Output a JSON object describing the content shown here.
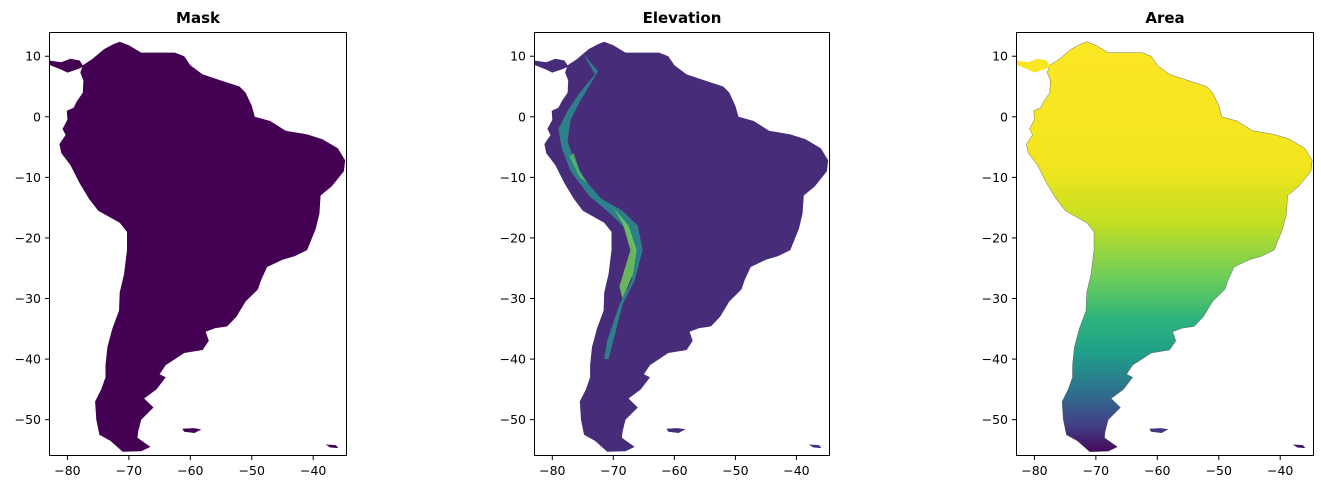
{
  "panels": [
    {
      "title": "Mask",
      "fill": "#440154",
      "x_ticks": [
        "−80",
        "−70",
        "−60",
        "−50",
        "−40"
      ],
      "y_ticks": [
        "10",
        "0",
        "−10",
        "−20",
        "−30",
        "−40",
        "−50"
      ]
    },
    {
      "title": "Elevation",
      "fill": "#472c7a",
      "x_ticks": [
        "−80",
        "−70",
        "−60",
        "−50",
        "−40"
      ],
      "y_ticks": [
        "10",
        "0",
        "−10",
        "−20",
        "−30",
        "−40",
        "−50"
      ]
    },
    {
      "title": "Area",
      "fill": "gradient",
      "x_ticks": [
        "−80",
        "−70",
        "−60",
        "−50",
        "−40"
      ],
      "y_ticks": [
        "10",
        "0",
        "−10",
        "−20",
        "−30",
        "−40",
        "−50"
      ]
    }
  ],
  "axes": {
    "x_range": [
      -83,
      -34.5
    ],
    "y_range": [
      -56,
      14
    ],
    "x_tick_values": [
      -80,
      -70,
      -60,
      -50,
      -40
    ],
    "y_tick_values": [
      10,
      0,
      -10,
      -20,
      -30,
      -40,
      -50
    ],
    "grid": false
  },
  "colormap": "viridis",
  "colors": {
    "viridis_dark": "#440154",
    "viridis_blue": "#31688e",
    "viridis_teal": "#21918c",
    "viridis_green": "#5ec962",
    "viridis_yellow": "#fde725"
  }
}
